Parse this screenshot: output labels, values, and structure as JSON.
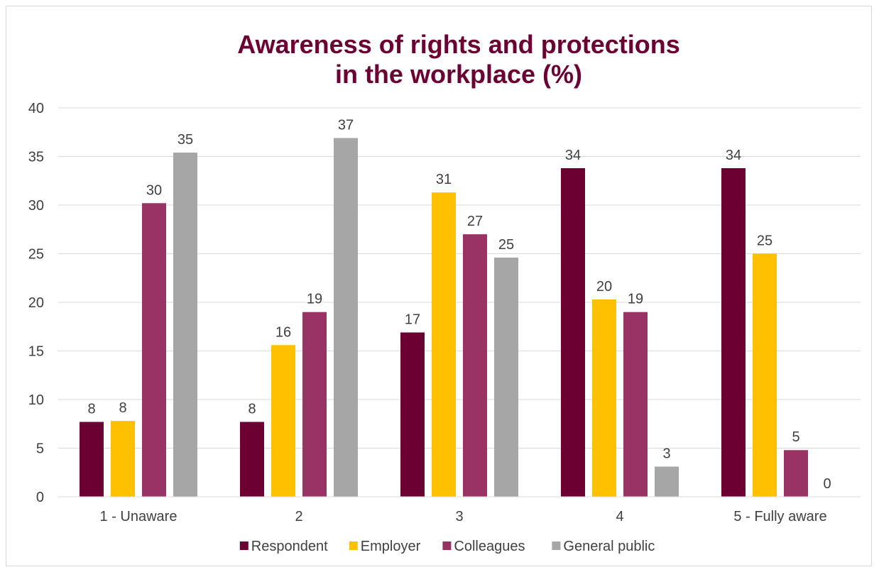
{
  "chart_data": {
    "type": "bar",
    "title_lines": [
      "Awareness of rights and protections",
      "in the workplace (%)"
    ],
    "categories": [
      "1 - Unaware",
      "2",
      "3",
      "4",
      "5 - Fully aware"
    ],
    "ylim": [
      0,
      40
    ],
    "yticks": [
      "0",
      "5",
      "10",
      "15",
      "20",
      "25",
      "30",
      "35",
      "40"
    ],
    "grid": true,
    "legend_position": "bottom",
    "series": [
      {
        "name": "Respondent",
        "color": "#6b0033",
        "values": [
          7.7,
          7.7,
          16.9,
          33.8,
          33.8
        ],
        "labels": [
          "8",
          "8",
          "17",
          "34",
          "34"
        ]
      },
      {
        "name": "Employer",
        "color": "#ffc000",
        "values": [
          7.8,
          15.6,
          31.3,
          20.3,
          25.0
        ],
        "labels": [
          "8",
          "16",
          "31",
          "20",
          "25"
        ]
      },
      {
        "name": "Colleagues",
        "color": "#993366",
        "values": [
          30.2,
          19.0,
          27.0,
          19.0,
          4.8
        ],
        "labels": [
          "30",
          "19",
          "27",
          "19",
          "5"
        ]
      },
      {
        "name": "General public",
        "color": "#a6a6a6",
        "values": [
          35.4,
          36.9,
          24.6,
          3.1,
          0.0
        ],
        "labels": [
          "35",
          "37",
          "25",
          "3",
          "0"
        ]
      }
    ]
  }
}
